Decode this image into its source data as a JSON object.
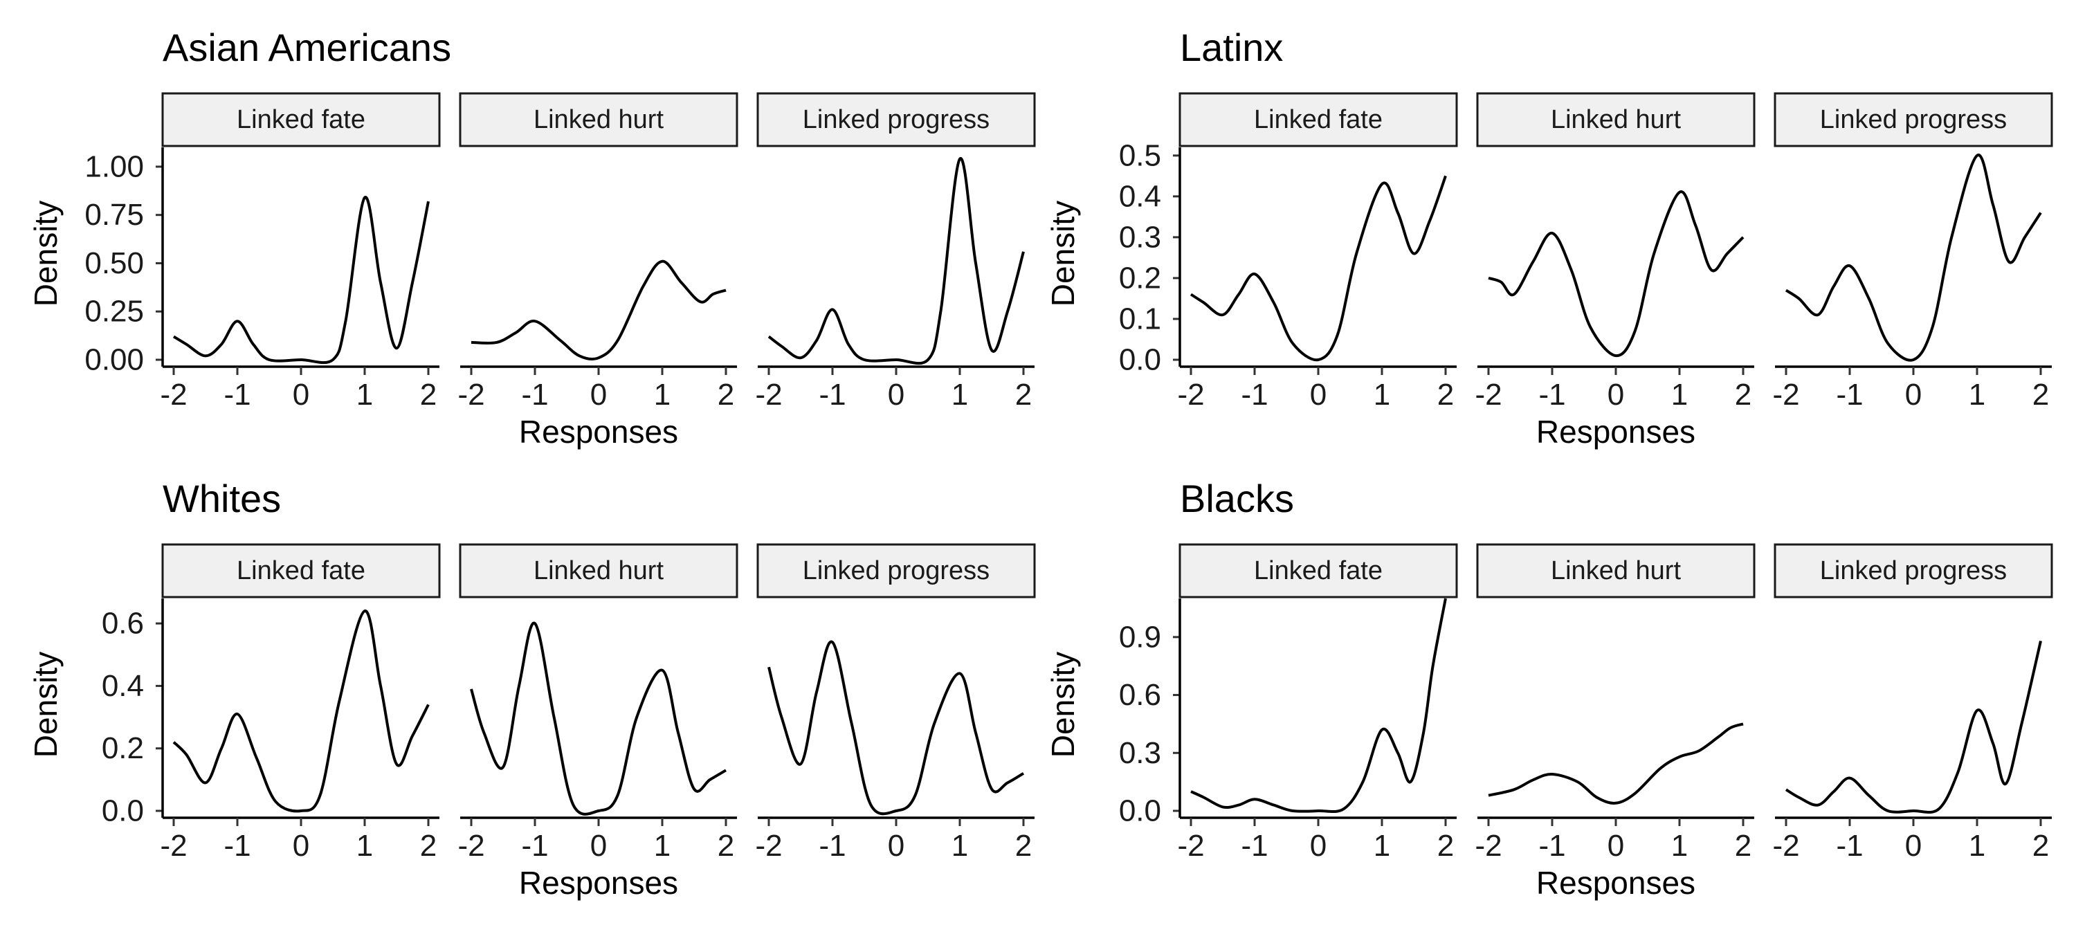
{
  "chart_data": [
    {
      "type": "line",
      "title": "Asian Americans",
      "xlabel": "Responses",
      "ylabel": "Density",
      "xlim": [
        -2,
        2
      ],
      "ylim": [
        0,
        1.1
      ],
      "yticks": [
        0,
        0.25,
        0.5,
        0.75,
        1.0
      ],
      "ytick_labels": [
        "0.00",
        "0.25",
        "0.50",
        "0.75",
        "1.00"
      ],
      "xticks": [
        -2,
        -1,
        0,
        1,
        2
      ],
      "xtick_labels": [
        "-2",
        "-1",
        "0",
        "1",
        "2"
      ],
      "facets": [
        {
          "label": "Linked fate",
          "points": [
            [
              -2,
              0.12
            ],
            [
              -1.8,
              0.08
            ],
            [
              -1.5,
              0.02
            ],
            [
              -1.25,
              0.08
            ],
            [
              -1.0,
              0.2
            ],
            [
              -0.75,
              0.08
            ],
            [
              -0.5,
              0.0
            ],
            [
              0,
              0.0
            ],
            [
              0.5,
              0.0
            ],
            [
              0.7,
              0.2
            ],
            [
              1.0,
              0.84
            ],
            [
              1.25,
              0.4
            ],
            [
              1.5,
              0.06
            ],
            [
              1.75,
              0.4
            ],
            [
              2.0,
              0.82
            ]
          ]
        },
        {
          "label": "Linked hurt",
          "points": [
            [
              -2,
              0.09
            ],
            [
              -1.6,
              0.09
            ],
            [
              -1.3,
              0.14
            ],
            [
              -1.0,
              0.2
            ],
            [
              -0.6,
              0.1
            ],
            [
              -0.3,
              0.02
            ],
            [
              0,
              0.01
            ],
            [
              0.3,
              0.1
            ],
            [
              0.7,
              0.38
            ],
            [
              1.0,
              0.51
            ],
            [
              1.3,
              0.4
            ],
            [
              1.6,
              0.3
            ],
            [
              1.8,
              0.34
            ],
            [
              2.0,
              0.36
            ]
          ]
        },
        {
          "label": "Linked progress",
          "points": [
            [
              -2,
              0.12
            ],
            [
              -1.8,
              0.07
            ],
            [
              -1.5,
              0.01
            ],
            [
              -1.25,
              0.1
            ],
            [
              -1.0,
              0.26
            ],
            [
              -0.75,
              0.08
            ],
            [
              -0.5,
              0.0
            ],
            [
              0,
              0.0
            ],
            [
              0.5,
              0.0
            ],
            [
              0.7,
              0.25
            ],
            [
              1.0,
              1.04
            ],
            [
              1.25,
              0.5
            ],
            [
              1.5,
              0.05
            ],
            [
              1.75,
              0.25
            ],
            [
              2.0,
              0.56
            ]
          ]
        }
      ]
    },
    {
      "type": "line",
      "title": "Latinx",
      "xlabel": "Responses",
      "ylabel": "Density",
      "xlim": [
        -2,
        2
      ],
      "ylim": [
        0,
        0.52
      ],
      "yticks": [
        0,
        0.1,
        0.2,
        0.3,
        0.4,
        0.5
      ],
      "ytick_labels": [
        "0.0",
        "0.1",
        "0.2",
        "0.3",
        "0.4",
        "0.5"
      ],
      "xticks": [
        -2,
        -1,
        0,
        1,
        2
      ],
      "xtick_labels": [
        "-2",
        "-1",
        "0",
        "1",
        "2"
      ],
      "facets": [
        {
          "label": "Linked fate",
          "points": [
            [
              -2,
              0.16
            ],
            [
              -1.8,
              0.14
            ],
            [
              -1.5,
              0.11
            ],
            [
              -1.25,
              0.16
            ],
            [
              -1.0,
              0.21
            ],
            [
              -0.7,
              0.14
            ],
            [
              -0.4,
              0.04
            ],
            [
              0,
              0.0
            ],
            [
              0.3,
              0.06
            ],
            [
              0.6,
              0.26
            ],
            [
              1.0,
              0.43
            ],
            [
              1.25,
              0.36
            ],
            [
              1.5,
              0.26
            ],
            [
              1.75,
              0.34
            ],
            [
              2.0,
              0.45
            ]
          ]
        },
        {
          "label": "Linked hurt",
          "points": [
            [
              -2,
              0.2
            ],
            [
              -1.8,
              0.19
            ],
            [
              -1.6,
              0.16
            ],
            [
              -1.3,
              0.24
            ],
            [
              -1.0,
              0.31
            ],
            [
              -0.7,
              0.22
            ],
            [
              -0.4,
              0.08
            ],
            [
              0,
              0.01
            ],
            [
              0.3,
              0.07
            ],
            [
              0.6,
              0.26
            ],
            [
              1.0,
              0.41
            ],
            [
              1.25,
              0.33
            ],
            [
              1.5,
              0.22
            ],
            [
              1.75,
              0.26
            ],
            [
              2.0,
              0.3
            ]
          ]
        },
        {
          "label": "Linked progress",
          "points": [
            [
              -2,
              0.17
            ],
            [
              -1.8,
              0.15
            ],
            [
              -1.5,
              0.11
            ],
            [
              -1.25,
              0.18
            ],
            [
              -1.0,
              0.23
            ],
            [
              -0.7,
              0.15
            ],
            [
              -0.4,
              0.04
            ],
            [
              0,
              0.0
            ],
            [
              0.3,
              0.08
            ],
            [
              0.6,
              0.3
            ],
            [
              1.0,
              0.5
            ],
            [
              1.25,
              0.38
            ],
            [
              1.5,
              0.24
            ],
            [
              1.75,
              0.3
            ],
            [
              2.0,
              0.36
            ]
          ]
        }
      ]
    },
    {
      "type": "line",
      "title": "Whites",
      "xlabel": "Responses",
      "ylabel": "Density",
      "xlim": [
        -2,
        2
      ],
      "ylim": [
        0,
        0.68
      ],
      "yticks": [
        0,
        0.2,
        0.4,
        0.6
      ],
      "ytick_labels": [
        "0.0",
        "0.2",
        "0.4",
        "0.6"
      ],
      "xticks": [
        -2,
        -1,
        0,
        1,
        2
      ],
      "xtick_labels": [
        "-2",
        "-1",
        "0",
        "1",
        "2"
      ],
      "facets": [
        {
          "label": "Linked fate",
          "points": [
            [
              -2,
              0.22
            ],
            [
              -1.8,
              0.18
            ],
            [
              -1.5,
              0.09
            ],
            [
              -1.25,
              0.2
            ],
            [
              -1.0,
              0.31
            ],
            [
              -0.7,
              0.17
            ],
            [
              -0.4,
              0.03
            ],
            [
              0,
              0.0
            ],
            [
              0.3,
              0.05
            ],
            [
              0.6,
              0.35
            ],
            [
              1.0,
              0.64
            ],
            [
              1.25,
              0.4
            ],
            [
              1.5,
              0.15
            ],
            [
              1.75,
              0.24
            ],
            [
              2.0,
              0.34
            ]
          ]
        },
        {
          "label": "Linked hurt",
          "points": [
            [
              -2,
              0.39
            ],
            [
              -1.8,
              0.25
            ],
            [
              -1.5,
              0.14
            ],
            [
              -1.25,
              0.4
            ],
            [
              -1.0,
              0.6
            ],
            [
              -0.7,
              0.3
            ],
            [
              -0.4,
              0.02
            ],
            [
              0,
              0.0
            ],
            [
              0.3,
              0.05
            ],
            [
              0.6,
              0.3
            ],
            [
              1.0,
              0.45
            ],
            [
              1.25,
              0.25
            ],
            [
              1.5,
              0.07
            ],
            [
              1.75,
              0.1
            ],
            [
              2.0,
              0.13
            ]
          ]
        },
        {
          "label": "Linked progress",
          "points": [
            [
              -2,
              0.46
            ],
            [
              -1.8,
              0.3
            ],
            [
              -1.5,
              0.15
            ],
            [
              -1.25,
              0.38
            ],
            [
              -1.0,
              0.54
            ],
            [
              -0.7,
              0.28
            ],
            [
              -0.4,
              0.02
            ],
            [
              0,
              0.0
            ],
            [
              0.3,
              0.05
            ],
            [
              0.6,
              0.28
            ],
            [
              1.0,
              0.44
            ],
            [
              1.25,
              0.25
            ],
            [
              1.5,
              0.07
            ],
            [
              1.75,
              0.09
            ],
            [
              2.0,
              0.12
            ]
          ]
        }
      ]
    },
    {
      "type": "line",
      "title": "Blacks",
      "xlabel": "Responses",
      "ylabel": "Density",
      "xlim": [
        -2,
        2
      ],
      "ylim": [
        0,
        1.1
      ],
      "yticks": [
        0,
        0.3,
        0.6,
        0.9
      ],
      "ytick_labels": [
        "0.0",
        "0.3",
        "0.6",
        "0.9"
      ],
      "xticks": [
        -2,
        -1,
        0,
        1,
        2
      ],
      "xtick_labels": [
        "-2",
        "-1",
        "0",
        "1",
        "2"
      ],
      "facets": [
        {
          "label": "Linked fate",
          "points": [
            [
              -2,
              0.1
            ],
            [
              -1.8,
              0.07
            ],
            [
              -1.5,
              0.02
            ],
            [
              -1.25,
              0.03
            ],
            [
              -1.0,
              0.06
            ],
            [
              -0.7,
              0.03
            ],
            [
              -0.4,
              0.0
            ],
            [
              0,
              0.0
            ],
            [
              0.4,
              0.01
            ],
            [
              0.7,
              0.15
            ],
            [
              1.0,
              0.42
            ],
            [
              1.25,
              0.3
            ],
            [
              1.45,
              0.15
            ],
            [
              1.65,
              0.4
            ],
            [
              1.8,
              0.75
            ],
            [
              2.0,
              1.1
            ]
          ]
        },
        {
          "label": "Linked hurt",
          "points": [
            [
              -2,
              0.08
            ],
            [
              -1.6,
              0.11
            ],
            [
              -1.3,
              0.16
            ],
            [
              -1.0,
              0.19
            ],
            [
              -0.6,
              0.15
            ],
            [
              -0.3,
              0.07
            ],
            [
              0,
              0.04
            ],
            [
              0.3,
              0.09
            ],
            [
              0.7,
              0.22
            ],
            [
              1.0,
              0.28
            ],
            [
              1.3,
              0.31
            ],
            [
              1.6,
              0.38
            ],
            [
              1.8,
              0.43
            ],
            [
              2.0,
              0.45
            ]
          ]
        },
        {
          "label": "Linked progress",
          "points": [
            [
              -2,
              0.11
            ],
            [
              -1.8,
              0.07
            ],
            [
              -1.5,
              0.03
            ],
            [
              -1.25,
              0.1
            ],
            [
              -1.0,
              0.17
            ],
            [
              -0.7,
              0.08
            ],
            [
              -0.4,
              0.0
            ],
            [
              0,
              0.0
            ],
            [
              0.4,
              0.01
            ],
            [
              0.7,
              0.2
            ],
            [
              1.0,
              0.52
            ],
            [
              1.25,
              0.35
            ],
            [
              1.45,
              0.14
            ],
            [
              1.7,
              0.45
            ],
            [
              2.0,
              0.88
            ]
          ]
        }
      ]
    }
  ]
}
